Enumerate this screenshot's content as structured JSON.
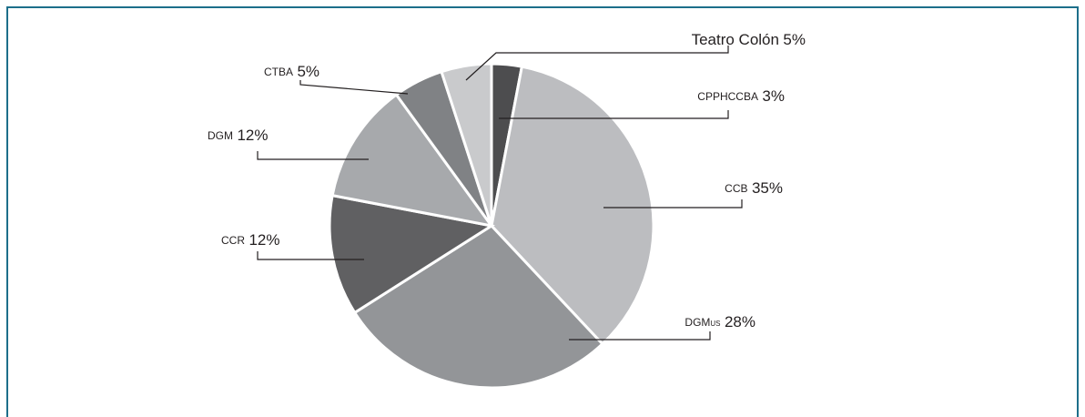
{
  "chart_data": {
    "type": "pie",
    "categories": [
      "CPPHCCBA",
      "CCB",
      "DGMus",
      "CCR",
      "DGM",
      "CTBA",
      "Teatro Colón"
    ],
    "values": [
      3,
      35,
      28,
      12,
      12,
      5,
      5
    ],
    "value_labels": [
      "3%",
      "35%",
      "28%",
      "12%",
      "12%",
      "5%",
      "5%"
    ],
    "colors": [
      "#4d4d4f",
      "#bcbdc0",
      "#939598",
      "#606062",
      "#a7a9ac",
      "#808285",
      "#c9cacc"
    ]
  }
}
